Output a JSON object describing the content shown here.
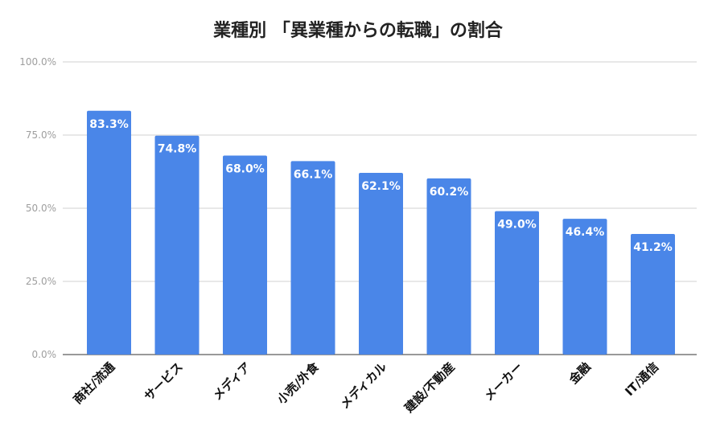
{
  "chart_data": {
    "type": "bar",
    "title": "業種別 「異業種からの転職」の割合",
    "xlabel": "",
    "ylabel": "",
    "categories": [
      "商社/流通",
      "サービス",
      "メディア",
      "小売/外食",
      "メディカル",
      "建設/不動産",
      "メーカー",
      "金融",
      "IT/通信"
    ],
    "values": [
      83.3,
      74.8,
      68.0,
      66.1,
      62.1,
      60.2,
      49.0,
      46.4,
      41.2
    ],
    "data_labels": [
      "83.3%",
      "74.8%",
      "68.0%",
      "66.1%",
      "62.1%",
      "60.2%",
      "49.0%",
      "46.4%",
      "41.2%"
    ],
    "yticks": [
      0,
      25,
      50,
      75,
      100
    ],
    "ytick_labels": [
      "0.0%",
      "25.0%",
      "50.0%",
      "75.0%",
      "100.0%"
    ],
    "ylim": [
      0,
      100
    ],
    "grid": true,
    "legend": "none",
    "colors": {
      "bar": "#4a86e8",
      "grid": "#d0d0d0",
      "axis": "#333333",
      "tick_text": "#9e9e9e",
      "label_text": "#ffffff"
    }
  }
}
